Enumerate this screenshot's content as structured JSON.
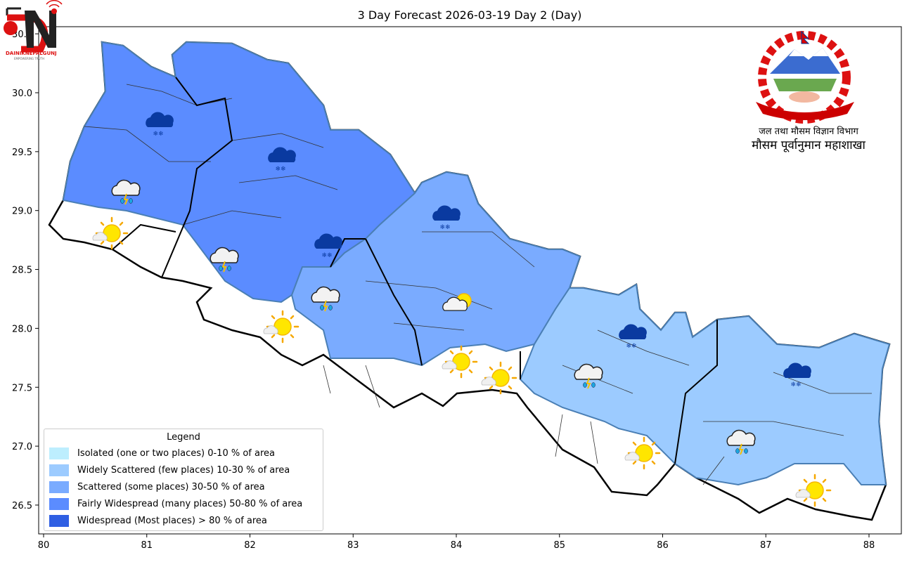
{
  "title": "3 Day Forecast 2026-03-19 Day 2 (Day)",
  "map": {
    "x_ticks": [
      "80",
      "81",
      "82",
      "83",
      "84",
      "85",
      "86",
      "87",
      "88"
    ],
    "y_ticks": [
      "30.5",
      "30.0",
      "29.5",
      "29.0",
      "28.5",
      "28.0",
      "27.5",
      "27.0",
      "26.5"
    ],
    "x_range": [
      79.95,
      88.3
    ],
    "y_range": [
      26.25,
      30.57
    ],
    "region_colors": {
      "fairly_widespread": "#5b8cff",
      "scattered": "#7aabff",
      "widely_scattered": "#9ccbff",
      "no_precip": "#ffffff"
    },
    "icons": [
      "snow-cloud",
      "thunder-rain-cloud",
      "sun-behind-cloud"
    ]
  },
  "legend": {
    "title": "Legend",
    "items": [
      {
        "label": "Isolated (one or two places)  0-10 % of area",
        "color": "#bdeefe"
      },
      {
        "label": "Widely Scattered (few places)  10-30 % of area",
        "color": "#9ccbff"
      },
      {
        "label": "Scattered (some places)  30-50 % of area",
        "color": "#7aabff"
      },
      {
        "label": "Fairly Widespread (many places)  50-80 % of area",
        "color": "#5b8cff"
      },
      {
        "label": "Widespread (Most places) > 80 % of area",
        "color": "#2f5fe3"
      }
    ]
  },
  "logo": {
    "text": "DAINIKNEPALGUNJ",
    "tagline": "EMPOWERING TRUTH"
  },
  "organization": {
    "department": "जल तथा मौसम विज्ञान विभाग",
    "division": "मौसम पूर्वानुमान महाशाखा"
  }
}
